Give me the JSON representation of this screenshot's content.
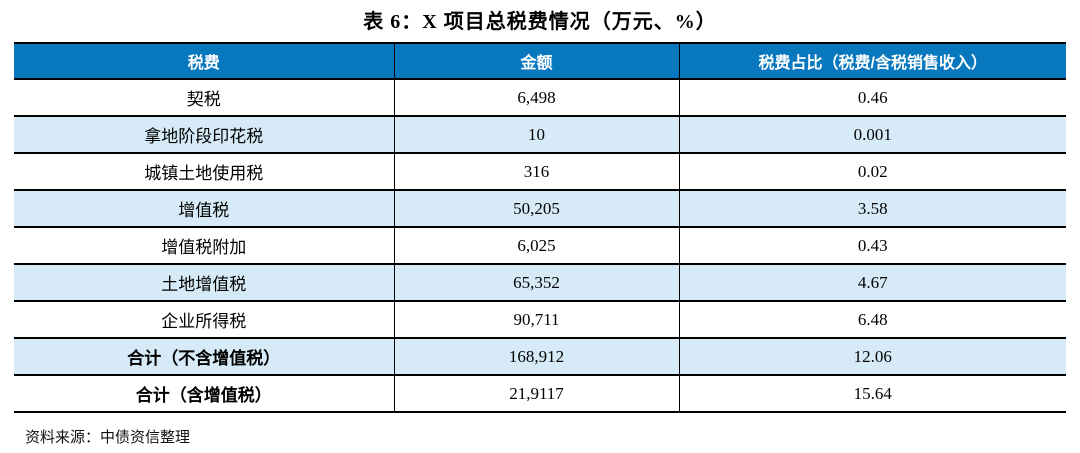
{
  "title": "表 6：X 项目总税费情况（万元、%）",
  "table": {
    "headers": [
      "税费",
      "金额",
      "税费占比（税费/含税销售收入）"
    ],
    "rows": [
      {
        "name": "契税",
        "amount": "6,498",
        "ratio": "0.46"
      },
      {
        "name": "拿地阶段印花税",
        "amount": "10",
        "ratio": "0.001"
      },
      {
        "name": "城镇土地使用税",
        "amount": "316",
        "ratio": "0.02"
      },
      {
        "name": "增值税",
        "amount": "50,205",
        "ratio": "3.58"
      },
      {
        "name": "增值税附加",
        "amount": "6,025",
        "ratio": "0.43"
      },
      {
        "name": "土地增值税",
        "amount": "65,352",
        "ratio": "4.67"
      },
      {
        "name": "企业所得税",
        "amount": "90,711",
        "ratio": "6.48"
      },
      {
        "name": "合计（不含增值税）",
        "amount": "168,912",
        "ratio": "12.06"
      },
      {
        "name": "合计（含增值税）",
        "amount": "21,9117",
        "ratio": "15.64"
      }
    ]
  },
  "source_note": "资料来源：中债资信整理",
  "colors": {
    "header_bg": "#0878BE",
    "header_text": "#FFFFFF",
    "alt_row_bg": "#D6EBF7",
    "border": "#000000"
  }
}
